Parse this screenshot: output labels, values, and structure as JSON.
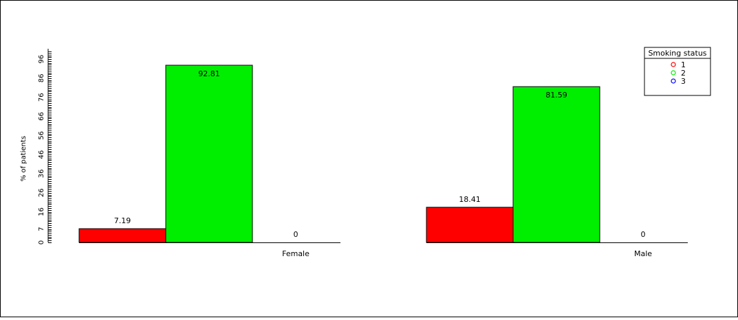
{
  "chart_data": {
    "type": "bar",
    "title": "",
    "xlabel": "",
    "ylabel": "% of patients",
    "ylim": [
      0,
      100
    ],
    "y_tick_labels": [
      "0",
      "7",
      "16",
      "26",
      "36",
      "46",
      "56",
      "66",
      "76",
      "86",
      "96"
    ],
    "y_tick_values": [
      0,
      7,
      16,
      26,
      36,
      46,
      56,
      66,
      76,
      86,
      96
    ],
    "categories": [
      "Female",
      "Male"
    ],
    "series": [
      {
        "name": "1",
        "color": "#ff0000",
        "values": [
          7.19,
          18.41
        ],
        "labels": [
          "7.19",
          "18.41"
        ]
      },
      {
        "name": "2",
        "color": "#00ee00",
        "values": [
          92.81,
          81.59
        ],
        "labels": [
          "92.81",
          "81.59"
        ]
      },
      {
        "name": "3",
        "color": "#0000ff",
        "values": [
          0,
          0
        ],
        "labels": [
          "0",
          "0"
        ]
      }
    ],
    "legend": {
      "title": "Smoking status",
      "placement": "top-right"
    },
    "grid": false
  }
}
